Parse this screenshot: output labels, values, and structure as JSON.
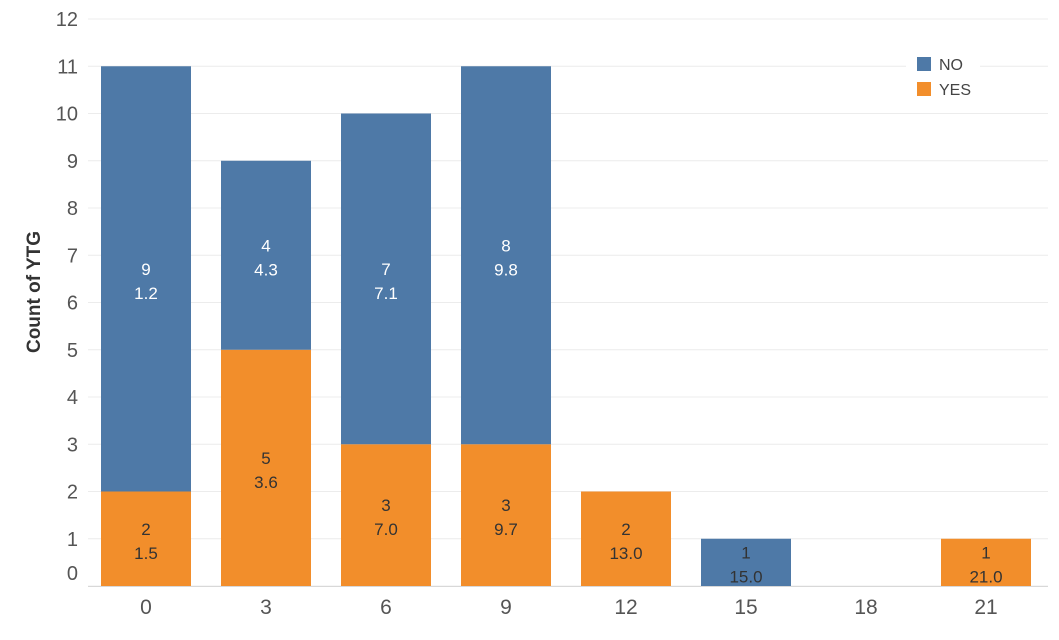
{
  "chart_data": {
    "type": "bar",
    "stacked": true,
    "title_fragment": "(…)",
    "ylabel": "Count of YTG",
    "xlabel": "",
    "ylim": [
      0,
      12
    ],
    "y_ticks": [
      0,
      1,
      2,
      3,
      4,
      5,
      6,
      7,
      8,
      9,
      10,
      11,
      12
    ],
    "categories": [
      "0",
      "3",
      "6",
      "9",
      "12",
      "15",
      "18",
      "21"
    ],
    "series": [
      {
        "name": "YES",
        "color": "#f28e2b",
        "values": [
          2,
          5,
          3,
          3,
          2,
          0,
          0,
          1
        ],
        "labels": [
          "1.5",
          "3.6",
          "7.0",
          "9.7",
          "13.0",
          null,
          null,
          "21.0"
        ]
      },
      {
        "name": "NO",
        "color": "#4e79a7",
        "values": [
          9,
          4,
          7,
          8,
          0,
          1,
          0,
          0
        ],
        "labels": [
          "1.2",
          "4.3",
          "7.1",
          "9.8",
          null,
          "15.0",
          null,
          null
        ]
      }
    ],
    "legend": {
      "position": "top-right",
      "order": [
        "NO",
        "YES"
      ]
    },
    "grid": true
  }
}
